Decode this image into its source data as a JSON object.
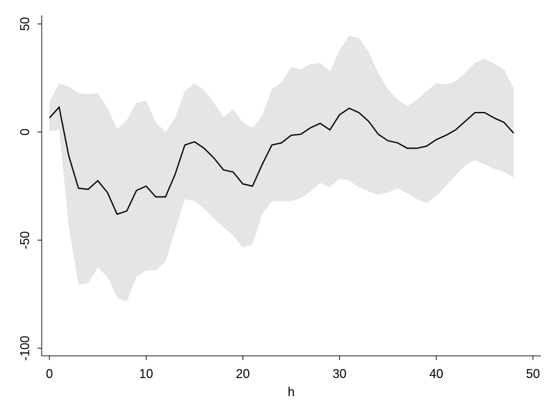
{
  "chart_data": {
    "type": "line",
    "xlabel": "h",
    "x": [
      0,
      1,
      2,
      3,
      4,
      5,
      6,
      7,
      8,
      9,
      10,
      11,
      12,
      13,
      14,
      15,
      16,
      17,
      18,
      19,
      20,
      21,
      22,
      23,
      24,
      25,
      26,
      27,
      28,
      29,
      30,
      31,
      32,
      33,
      34,
      35,
      36,
      37,
      38,
      39,
      40,
      41,
      42,
      43,
      44,
      45,
      46,
      47,
      48
    ],
    "series": [
      {
        "color": "#000000",
        "values": [
          6.5,
          11.5,
          -11,
          -26,
          -26.5,
          -22.5,
          -28,
          -38,
          -36.5,
          -27,
          -25,
          -30,
          -30,
          -19.5,
          -6,
          -4.5,
          -7.5,
          -12,
          -17.5,
          -18.5,
          -24,
          -25,
          -15,
          -6,
          -5,
          -1.5,
          -1,
          2,
          4,
          1,
          8,
          11,
          9,
          5,
          -1,
          -4,
          -5,
          -7.5,
          -7.5,
          -6.5,
          -3.5,
          -1.5,
          1,
          5,
          9,
          9,
          6.5,
          4.5,
          -0.5
        ]
      }
    ],
    "band": {
      "color": "#e5e5e5",
      "upper": [
        14,
        22.5,
        21,
        18,
        17.5,
        18,
        11,
        1.5,
        5.5,
        13.5,
        14.5,
        4.5,
        0,
        6.5,
        19,
        22.5,
        19.5,
        13.5,
        7,
        10.5,
        4.5,
        2,
        7.5,
        20,
        23,
        30,
        29,
        31.5,
        32,
        28,
        38,
        44.5,
        43.5,
        37,
        27.5,
        20,
        15,
        12,
        15,
        19,
        22.5,
        22,
        23.5,
        27.5,
        32,
        34,
        31.5,
        29,
        20.5
      ],
      "lower": [
        0.5,
        1,
        -43.5,
        -70.5,
        -70,
        -62.5,
        -67,
        -76.5,
        -78.5,
        -67,
        -64,
        -64,
        -60,
        -45.5,
        -31,
        -32,
        -35.5,
        -40,
        -44,
        -48,
        -53.5,
        -52,
        -38,
        -32,
        -32,
        -32,
        -30.5,
        -27.5,
        -23.5,
        -25.5,
        -21.5,
        -22.5,
        -25.5,
        -27.5,
        -29,
        -28,
        -26,
        -28.5,
        -31,
        -33,
        -29.5,
        -25,
        -20,
        -15.5,
        -13,
        -15,
        -17,
        -18.5,
        -21
      ]
    },
    "xlim": [
      -0.8,
      50.8
    ],
    "ylim": [
      -103.5,
      54
    ],
    "xticks": [
      0,
      10,
      20,
      30,
      40,
      50
    ],
    "yticks": [
      -100,
      -50,
      0,
      50
    ]
  }
}
